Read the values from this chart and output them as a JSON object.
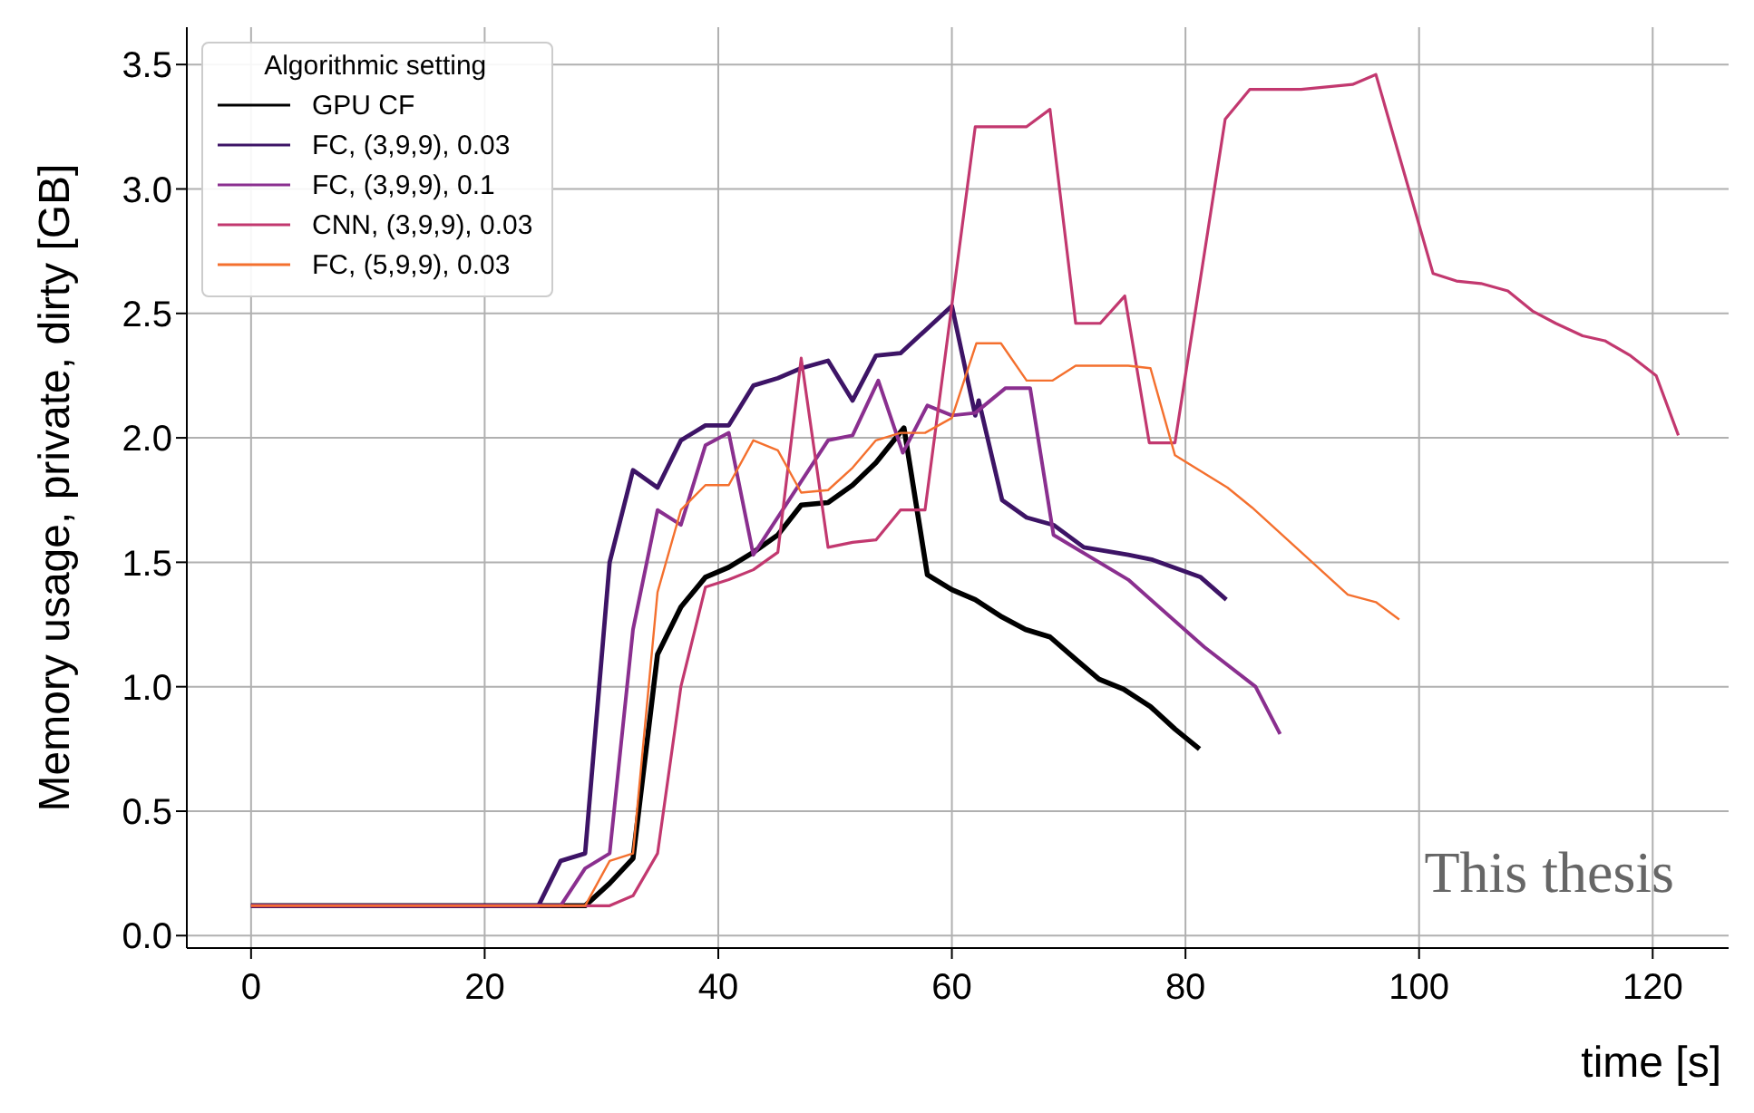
{
  "chart_data": {
    "type": "line",
    "xlabel": "time [s]",
    "ylabel": "Memory usage, private, dirty [GB]",
    "legend_title": "Algorithmic setting",
    "legend": "top left",
    "grid": true,
    "line_style": "solid",
    "marker": "none",
    "xlim": [
      -5.5,
      126.5
    ],
    "xticks": [
      0,
      20,
      40,
      60,
      80,
      100,
      120
    ],
    "ylim": [
      -0.05,
      3.65
    ],
    "yticks": [
      {
        "value": 0,
        "label": "0.0"
      },
      {
        "value": 0.5,
        "label": "0.5"
      },
      {
        "value": 1,
        "label": "1.0"
      },
      {
        "value": 1.5,
        "label": "1.5"
      },
      {
        "value": 2,
        "label": "2.0"
      },
      {
        "value": 2.5,
        "label": "2.5"
      },
      {
        "value": 3,
        "label": "3.0"
      },
      {
        "value": 3.5,
        "label": "3.5"
      }
    ],
    "annotations": [
      "This thesis"
    ],
    "series": [
      {
        "name": "GPU CF",
        "color": "#000000",
        "x": [
          0,
          28.6,
          30.7,
          32.7,
          34.8,
          36.8,
          38.9,
          40.9,
          43.0,
          45.1,
          47.1,
          49.4,
          51.5,
          53.5,
          55.9,
          57.9,
          60.0,
          62.0,
          64.3,
          66.3,
          68.4,
          70.6,
          72.6,
          74.7,
          77.0,
          79.1,
          81.2
        ],
        "values": [
          0.12,
          0.12,
          0.21,
          0.31,
          1.13,
          1.32,
          1.44,
          1.48,
          1.54,
          1.61,
          1.73,
          1.74,
          1.81,
          1.9,
          2.04,
          1.45,
          1.39,
          1.35,
          1.28,
          1.23,
          1.2,
          1.11,
          1.03,
          0.99,
          0.92,
          0.83,
          0.75
        ]
      },
      {
        "name": "FC, (3,9,9), 0.03",
        "color": "#3d1466",
        "x": [
          0,
          24.6,
          26.5,
          28.6,
          30.7,
          32.7,
          34.8,
          36.8,
          38.9,
          40.9,
          43.0,
          45.1,
          47.1,
          49.4,
          51.5,
          53.5,
          55.6,
          60.0,
          62.0,
          62.3,
          64.3,
          66.4,
          68.7,
          71.3,
          75.1,
          77.2,
          81.3,
          83.5
        ],
        "values": [
          0.12,
          0.12,
          0.3,
          0.33,
          1.5,
          1.87,
          1.8,
          1.99,
          2.05,
          2.05,
          2.21,
          2.24,
          2.28,
          2.31,
          2.15,
          2.33,
          2.34,
          2.53,
          2.09,
          2.15,
          1.75,
          1.68,
          1.65,
          1.56,
          1.53,
          1.51,
          1.44,
          1.35
        ]
      },
      {
        "name": "FC, (3,9,9), 0.1",
        "color": "#8a2f8f",
        "x": [
          0,
          26.5,
          28.6,
          30.7,
          32.7,
          34.8,
          36.8,
          38.9,
          40.9,
          43.0,
          49.4,
          51.5,
          53.7,
          55.8,
          57.9,
          60.0,
          62.0,
          64.6,
          66.7,
          68.7,
          75.1,
          81.6,
          86.0,
          88.1
        ],
        "values": [
          0.12,
          0.12,
          0.27,
          0.33,
          1.23,
          1.71,
          1.65,
          1.97,
          2.02,
          1.53,
          1.99,
          2.01,
          2.23,
          1.94,
          2.13,
          2.09,
          2.1,
          2.2,
          2.2,
          1.61,
          1.43,
          1.16,
          1.0,
          0.81
        ]
      },
      {
        "name": "CNN, (3,9,9), 0.03",
        "color": "#c2386f",
        "x": [
          0,
          30.7,
          32.7,
          34.8,
          36.8,
          38.9,
          40.9,
          43.0,
          45.1,
          47.1,
          49.4,
          51.5,
          53.5,
          55.6,
          57.7,
          62.0,
          66.4,
          68.4,
          70.6,
          72.7,
          74.8,
          76.9,
          79.1,
          83.4,
          85.5,
          89.9,
          94.3,
          96.3,
          101.2,
          103.2,
          105.3,
          107.6,
          109.7,
          111.7,
          114.0,
          115.9,
          118.1,
          120.3,
          122.2
        ],
        "values": [
          0.12,
          0.12,
          0.16,
          0.33,
          1.0,
          1.4,
          1.43,
          1.47,
          1.54,
          2.32,
          1.56,
          1.58,
          1.59,
          1.71,
          1.71,
          3.25,
          3.25,
          3.32,
          2.46,
          2.46,
          2.57,
          1.98,
          1.98,
          3.28,
          3.4,
          3.4,
          3.42,
          3.46,
          2.66,
          2.63,
          2.62,
          2.59,
          2.51,
          2.46,
          2.41,
          2.39,
          2.33,
          2.25,
          2.01
        ]
      },
      {
        "name": "FC, (5,9,9), 0.03",
        "color": "#f4702e",
        "x": [
          0,
          28.6,
          30.7,
          32.7,
          34.8,
          36.8,
          38.9,
          40.9,
          43.0,
          45.1,
          47.1,
          49.4,
          51.5,
          53.5,
          55.6,
          57.7,
          60.0,
          62.1,
          64.2,
          66.4,
          68.6,
          70.6,
          75.1,
          77.0,
          79.1,
          83.6,
          85.7,
          93.9,
          96.3,
          98.3
        ],
        "values": [
          0.12,
          0.12,
          0.3,
          0.33,
          1.38,
          1.71,
          1.81,
          1.81,
          1.99,
          1.95,
          1.78,
          1.79,
          1.88,
          1.99,
          2.02,
          2.02,
          2.08,
          2.38,
          2.38,
          2.23,
          2.23,
          2.29,
          2.29,
          2.28,
          1.93,
          1.8,
          1.72,
          1.37,
          1.34,
          1.27
        ]
      }
    ]
  }
}
